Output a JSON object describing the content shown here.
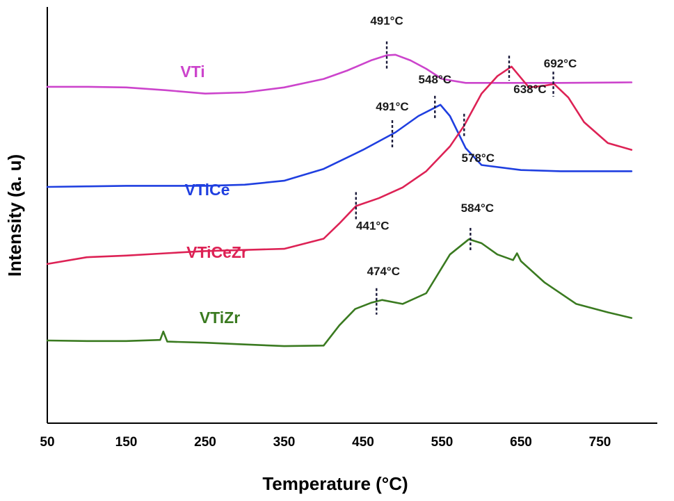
{
  "chart_data": {
    "type": "line",
    "xlabel": "Temperature (°C)",
    "ylabel": "Intensity (a. u)",
    "xlim": [
      50,
      790
    ],
    "x_ticks": [
      50,
      150,
      250,
      350,
      450,
      550,
      650,
      750
    ],
    "x_tick_labels": [
      "50",
      "150",
      "250",
      "350",
      "450",
      "550",
      "650",
      "750"
    ],
    "y_ticks_shown": false,
    "grid": false,
    "legend": "inline labels next to curves",
    "series": [
      {
        "name": "VTi",
        "color": "#cc44cc",
        "x": [
          50,
          100,
          150,
          200,
          250,
          300,
          350,
          400,
          430,
          460,
          480,
          491,
          510,
          530,
          550,
          580,
          620,
          700,
          790
        ],
        "y": [
          5.98,
          5.98,
          5.97,
          5.92,
          5.86,
          5.88,
          5.97,
          6.12,
          6.27,
          6.45,
          6.54,
          6.55,
          6.45,
          6.3,
          6.12,
          6.05,
          6.05,
          6.05,
          6.06
        ]
      },
      {
        "name": "VTiCe",
        "color": "#1f3fe0",
        "x": [
          50,
          100,
          150,
          200,
          250,
          300,
          350,
          400,
          450,
          491,
          520,
          548,
          560,
          580,
          600,
          650,
          700,
          790
        ],
        "y": [
          4.2,
          4.21,
          4.22,
          4.22,
          4.22,
          4.24,
          4.31,
          4.52,
          4.86,
          5.17,
          5.46,
          5.66,
          5.46,
          4.89,
          4.59,
          4.5,
          4.48,
          4.48
        ]
      },
      {
        "name": "VTiCeZr",
        "color": "#dd2255",
        "x": [
          50,
          100,
          150,
          200,
          250,
          300,
          350,
          400,
          420,
          441,
          470,
          500,
          530,
          560,
          578,
          600,
          620,
          638,
          660,
          680,
          692,
          710,
          730,
          760,
          790
        ],
        "y": [
          2.83,
          2.95,
          2.98,
          3.02,
          3.06,
          3.08,
          3.1,
          3.28,
          3.55,
          3.86,
          4.0,
          4.19,
          4.48,
          4.92,
          5.29,
          5.86,
          6.17,
          6.34,
          5.97,
          6.0,
          6.03,
          5.79,
          5.35,
          4.98,
          4.86
        ]
      },
      {
        "name": "VTiZr",
        "color": "#3a7a20",
        "x": [
          50,
          100,
          150,
          193,
          197,
          202,
          250,
          300,
          350,
          400,
          420,
          440,
          460,
          474,
          500,
          530,
          560,
          584,
          600,
          620,
          640,
          645,
          650,
          680,
          720,
          760,
          790
        ],
        "y": [
          1.47,
          1.46,
          1.46,
          1.48,
          1.63,
          1.45,
          1.43,
          1.4,
          1.37,
          1.38,
          1.74,
          2.03,
          2.14,
          2.19,
          2.12,
          2.31,
          3.0,
          3.27,
          3.2,
          3.0,
          2.9,
          3.02,
          2.88,
          2.5,
          2.12,
          1.97,
          1.87
        ]
      }
    ],
    "annotations": [
      {
        "text": "491°C",
        "x": 480,
        "series": "VTi"
      },
      {
        "text": "491°C",
        "x": 487,
        "series": "VTiCe"
      },
      {
        "text": "548°C",
        "x": 541,
        "series": "VTiCe"
      },
      {
        "text": "578°C",
        "x": 578,
        "series": "VTiCeZr"
      },
      {
        "text": "638°C",
        "x": 635,
        "series": "VTiCeZr"
      },
      {
        "text": "692°C",
        "x": 691,
        "series": "VTiCeZr"
      },
      {
        "text": "441°C",
        "x": 441,
        "series": "VTiCeZr"
      },
      {
        "text": "474°C",
        "x": 467,
        "series": "VTiZr"
      },
      {
        "text": "584°C",
        "x": 586,
        "series": "VTiZr"
      }
    ]
  }
}
